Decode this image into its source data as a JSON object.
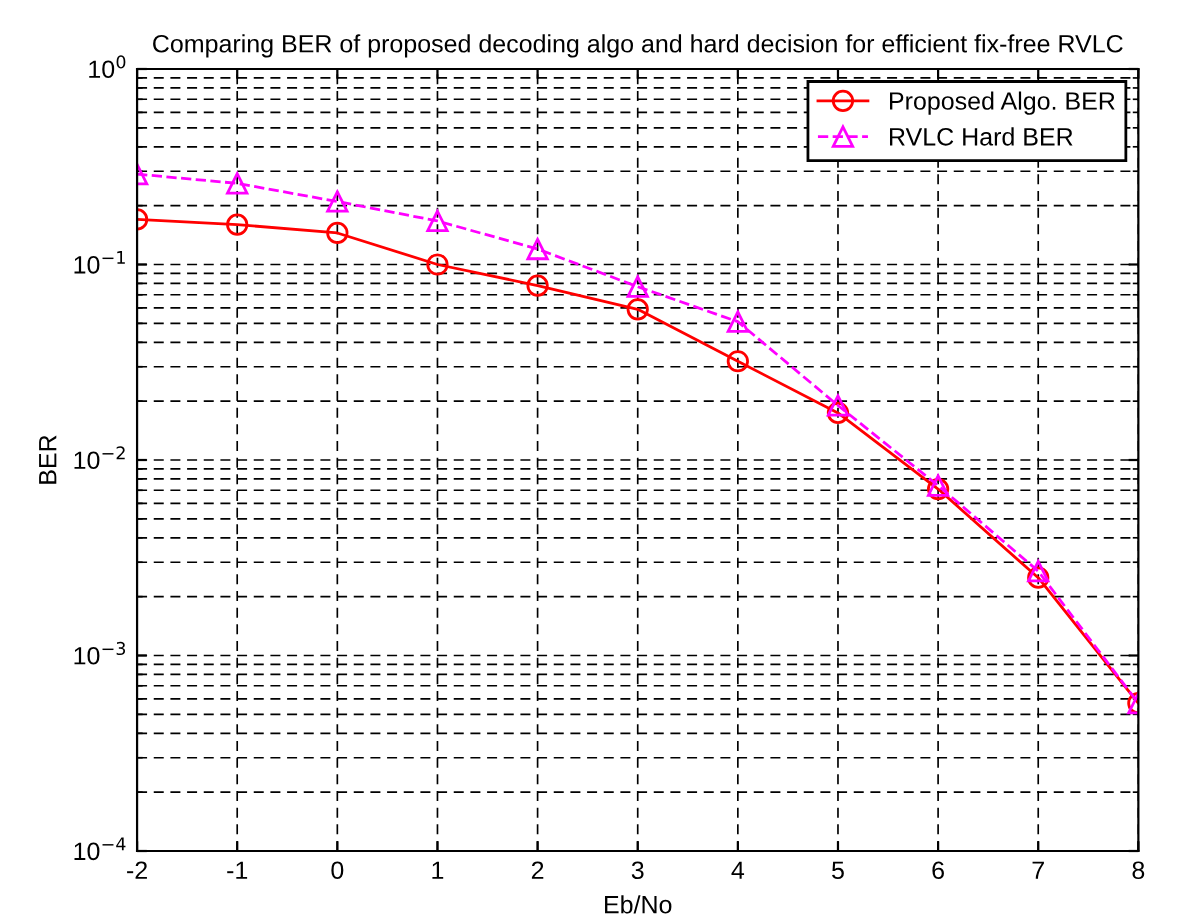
{
  "chart_data": {
    "type": "line",
    "title": "Comparing BER of proposed decoding algo and hard decision for efficient fix-free RVLC",
    "xlabel": "Eb/No",
    "ylabel": "BER",
    "x": [
      -2,
      -1,
      0,
      1,
      2,
      3,
      4,
      5,
      6,
      7,
      8
    ],
    "series": [
      {
        "name": "Proposed Algo. BER",
        "color": "#ff0000",
        "marker": "circle",
        "line_style": "solid",
        "values": [
          0.17,
          0.16,
          0.145,
          0.1,
          0.078,
          0.059,
          0.032,
          0.0174,
          0.0071,
          0.0025,
          0.00057
        ]
      },
      {
        "name": "RVLC Hard BER",
        "color": "#ff00ff",
        "marker": "triangle",
        "line_style": "dashed",
        "values": [
          0.29,
          0.26,
          0.21,
          0.167,
          0.12,
          0.077,
          0.051,
          0.019,
          0.0074,
          0.0027,
          0.00057
        ]
      }
    ],
    "log": "y",
    "xlim": [
      -2,
      8
    ],
    "xticks": [
      -2,
      -1,
      0,
      1,
      2,
      3,
      4,
      5,
      6,
      7,
      8
    ],
    "ylim": [
      0.0001,
      1
    ],
    "yticks": [
      {
        "value": 0.0001,
        "label": "10$^{−4}$"
      },
      {
        "value": 0.001,
        "label": "10$^{−3}$"
      },
      {
        "value": 0.01,
        "label": "10$^{−2}$"
      },
      {
        "value": 0.1,
        "label": "10$^{−1}$"
      },
      {
        "value": 1,
        "label": "10$^{0}$"
      }
    ],
    "grid": true,
    "legend": "top right"
  }
}
